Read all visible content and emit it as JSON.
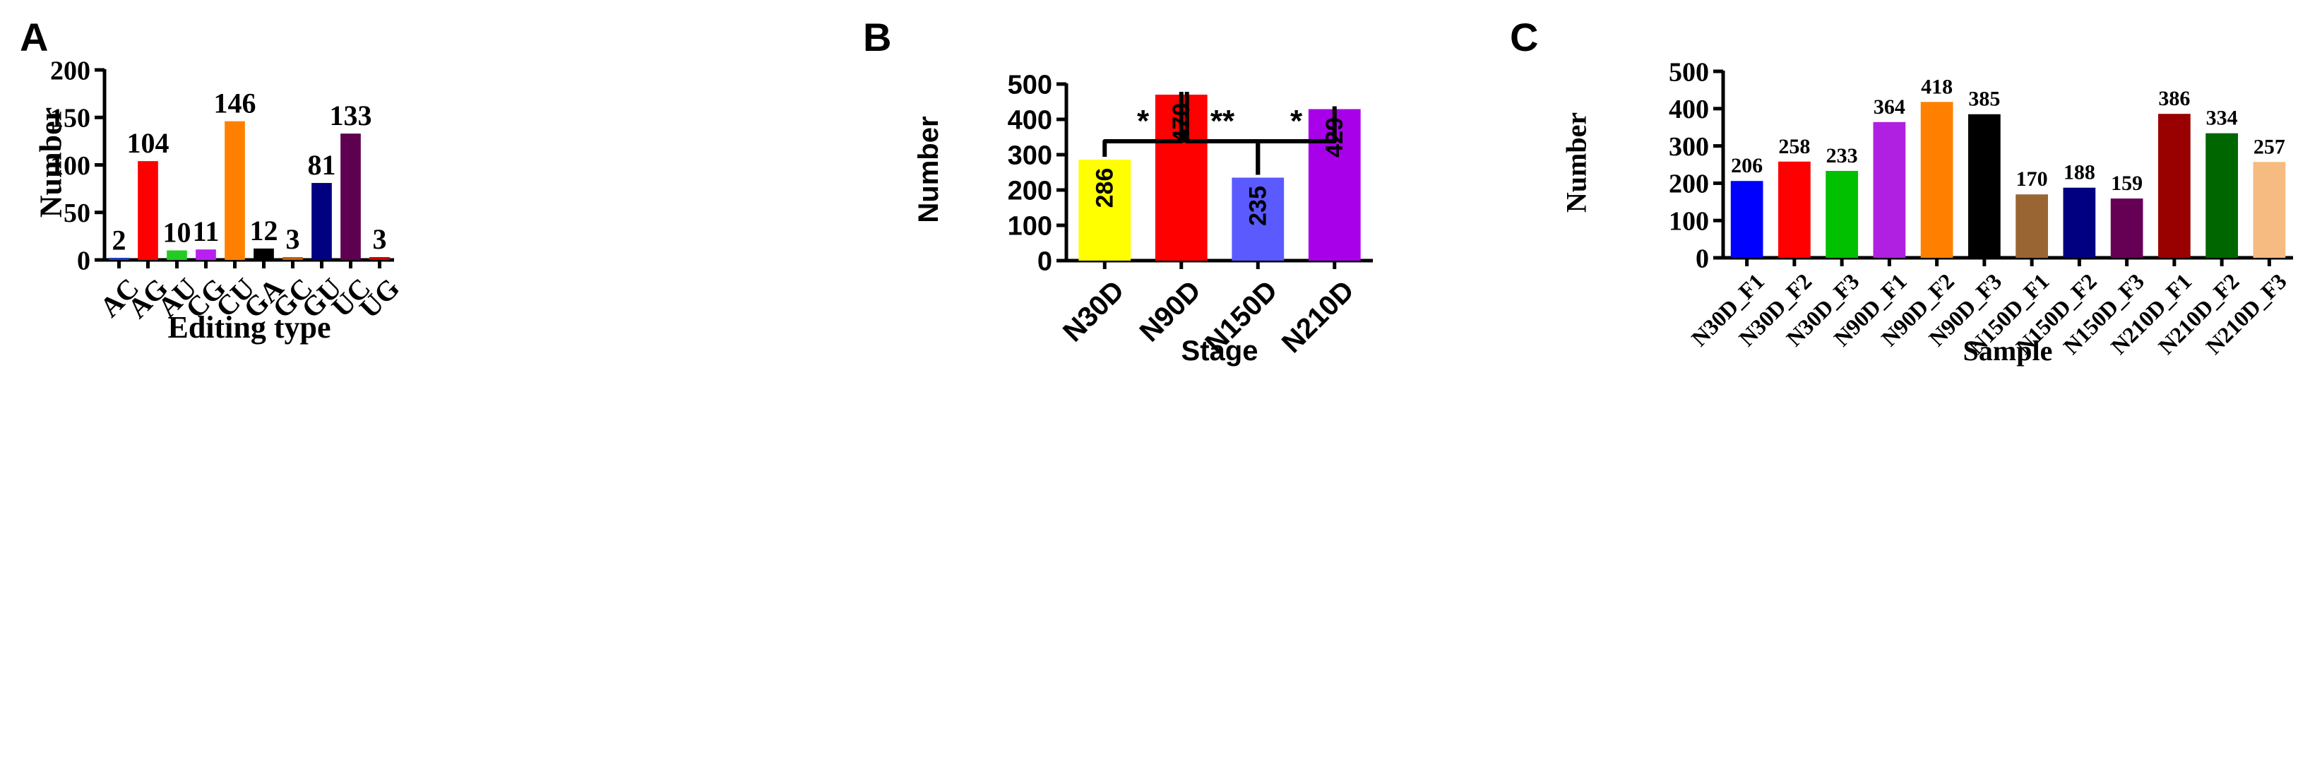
{
  "panels": [
    {
      "letter": "A",
      "chart_data": {
        "type": "bar",
        "title": "",
        "xlabel": "Editing type",
        "ylabel": "Number",
        "ylim": [
          0,
          200
        ],
        "yticks": [
          "0",
          "50",
          "100",
          "150",
          "200"
        ],
        "categories": [
          "AC",
          "AG",
          "AU",
          "CG",
          "CU",
          "GA",
          "GC",
          "GU",
          "UC",
          "UG"
        ],
        "values": [
          2,
          104,
          10,
          11,
          146,
          12,
          3,
          81,
          133,
          3
        ],
        "labels": [
          "2",
          "104",
          "10",
          "11",
          "146",
          "12",
          "3",
          "81",
          "133",
          "3"
        ],
        "colors": [
          "#1f3fbf",
          "#ff0000",
          "#22cc22",
          "#b820f0",
          "#ff8000",
          "#000000",
          "#c06000",
          "#000080",
          "#5e0050",
          "#cc0000"
        ]
      }
    },
    {
      "letter": "B",
      "chart_data": {
        "type": "bar",
        "title": "",
        "xlabel": "Stage",
        "ylabel": "Number",
        "ylim": [
          0,
          500
        ],
        "yticks": [
          "0",
          "100",
          "200",
          "300",
          "400",
          "500"
        ],
        "categories": [
          "N30D",
          "N90D",
          "N150D",
          "N210D"
        ],
        "values": [
          286,
          470,
          235,
          429
        ],
        "labels": [
          "286",
          "470",
          "235",
          "429"
        ],
        "colors": [
          "#ffff00",
          "#ff0000",
          "#5a5aff",
          "#a800e8"
        ],
        "significance": [
          {
            "from": "N30D",
            "to": "N90D",
            "label": "*"
          },
          {
            "from": "N90D",
            "to": "N150D",
            "label": "**"
          },
          {
            "from": "N150D",
            "to": "N210D",
            "label": "*"
          }
        ]
      }
    },
    {
      "letter": "C",
      "chart_data": {
        "type": "bar",
        "title": "",
        "xlabel": "Sample",
        "ylabel": "Number",
        "ylim": [
          0,
          500
        ],
        "yticks": [
          "0",
          "100",
          "200",
          "300",
          "400",
          "500"
        ],
        "categories": [
          "N30D_F1",
          "N30D_F2",
          "N30D_F3",
          "N90D_F1",
          "N90D_F2",
          "N90D_F3",
          "N150D_F1",
          "N150D_F2",
          "N150D_F3",
          "N210D_F1",
          "N210D_F2",
          "N210D_F3"
        ],
        "values": [
          206,
          258,
          233,
          364,
          418,
          385,
          170,
          188,
          159,
          386,
          334,
          257
        ],
        "labels": [
          "206",
          "258",
          "233",
          "364",
          "418",
          "385",
          "170",
          "188",
          "159",
          "386",
          "334",
          "257"
        ],
        "colors": [
          "#0000ff",
          "#ff0000",
          "#00c000",
          "#b020e0",
          "#ff8000",
          "#000000",
          "#996633",
          "#000080",
          "#660055",
          "#990000",
          "#006600",
          "#f5bb80"
        ]
      }
    }
  ]
}
